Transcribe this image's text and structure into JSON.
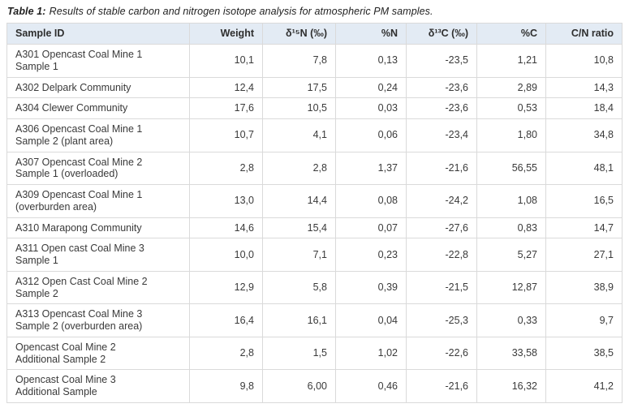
{
  "colors": {
    "header_background": "#e3ebf4",
    "grid_border": "#dadada",
    "text": "#3a3a3a"
  },
  "caption": {
    "label": "Table 1:",
    "text": "Results of stable carbon and nitrogen isotope analysis for atmospheric PM samples."
  },
  "table": {
    "columns": [
      "Sample ID",
      "Weight",
      "δ¹⁵N (‰)",
      "%N",
      "δ¹³C (‰)",
      "%C",
      "C/N ratio"
    ],
    "rows": [
      {
        "sample_id": "A301 Opencast Coal Mine 1\nSample 1",
        "weight": "10,1",
        "d15n": "7,8",
        "pct_n": "0,13",
        "d13c": "-23,5",
        "pct_c": "1,21",
        "cn_ratio": "10,8"
      },
      {
        "sample_id": "A302 Delpark Community",
        "weight": "12,4",
        "d15n": "17,5",
        "pct_n": "0,24",
        "d13c": "-23,6",
        "pct_c": "2,89",
        "cn_ratio": "14,3"
      },
      {
        "sample_id": "A304 Clewer Community",
        "weight": "17,6",
        "d15n": "10,5",
        "pct_n": "0,03",
        "d13c": "-23,6",
        "pct_c": "0,53",
        "cn_ratio": "18,4"
      },
      {
        "sample_id": "A306 Opencast Coal Mine 1\nSample 2 (plant area)",
        "weight": "10,7",
        "d15n": "4,1",
        "pct_n": "0,06",
        "d13c": "-23,4",
        "pct_c": "1,80",
        "cn_ratio": "34,8"
      },
      {
        "sample_id": "A307 Opencast Coal Mine 2\nSample 1 (overloaded)",
        "weight": "2,8",
        "d15n": "2,8",
        "pct_n": "1,37",
        "d13c": "-21,6",
        "pct_c": "56,55",
        "cn_ratio": "48,1"
      },
      {
        "sample_id": "A309 Opencast Coal Mine 1\n(overburden area)",
        "weight": "13,0",
        "d15n": "14,4",
        "pct_n": "0,08",
        "d13c": "-24,2",
        "pct_c": "1,08",
        "cn_ratio": "16,5"
      },
      {
        "sample_id": "A310 Marapong Community",
        "weight": "14,6",
        "d15n": "15,4",
        "pct_n": "0,07",
        "d13c": "-27,6",
        "pct_c": "0,83",
        "cn_ratio": "14,7"
      },
      {
        "sample_id": "A311 Open cast Coal Mine 3\nSample 1",
        "weight": "10,0",
        "d15n": "7,1",
        "pct_n": "0,23",
        "d13c": "-22,8",
        "pct_c": "5,27",
        "cn_ratio": "27,1"
      },
      {
        "sample_id": "A312 Open Cast Coal Mine 2\nSample 2",
        "weight": "12,9",
        "d15n": "5,8",
        "pct_n": "0,39",
        "d13c": "-21,5",
        "pct_c": "12,87",
        "cn_ratio": "38,9"
      },
      {
        "sample_id": "A313 Opencast Coal Mine 3\nSample 2 (overburden area)",
        "weight": "16,4",
        "d15n": "16,1",
        "pct_n": "0,04",
        "d13c": "-25,3",
        "pct_c": "0,33",
        "cn_ratio": "9,7"
      },
      {
        "sample_id": "Opencast Coal Mine 2\nAdditional Sample 2",
        "weight": "2,8",
        "d15n": "1,5",
        "pct_n": "1,02",
        "d13c": "-22,6",
        "pct_c": "33,58",
        "cn_ratio": "38,5"
      },
      {
        "sample_id": "Opencast Coal Mine 3\nAdditional Sample",
        "weight": "9,8",
        "d15n": "6,00",
        "pct_n": "0,46",
        "d13c": "-21,6",
        "pct_c": "16,32",
        "cn_ratio": "41,2"
      }
    ]
  }
}
